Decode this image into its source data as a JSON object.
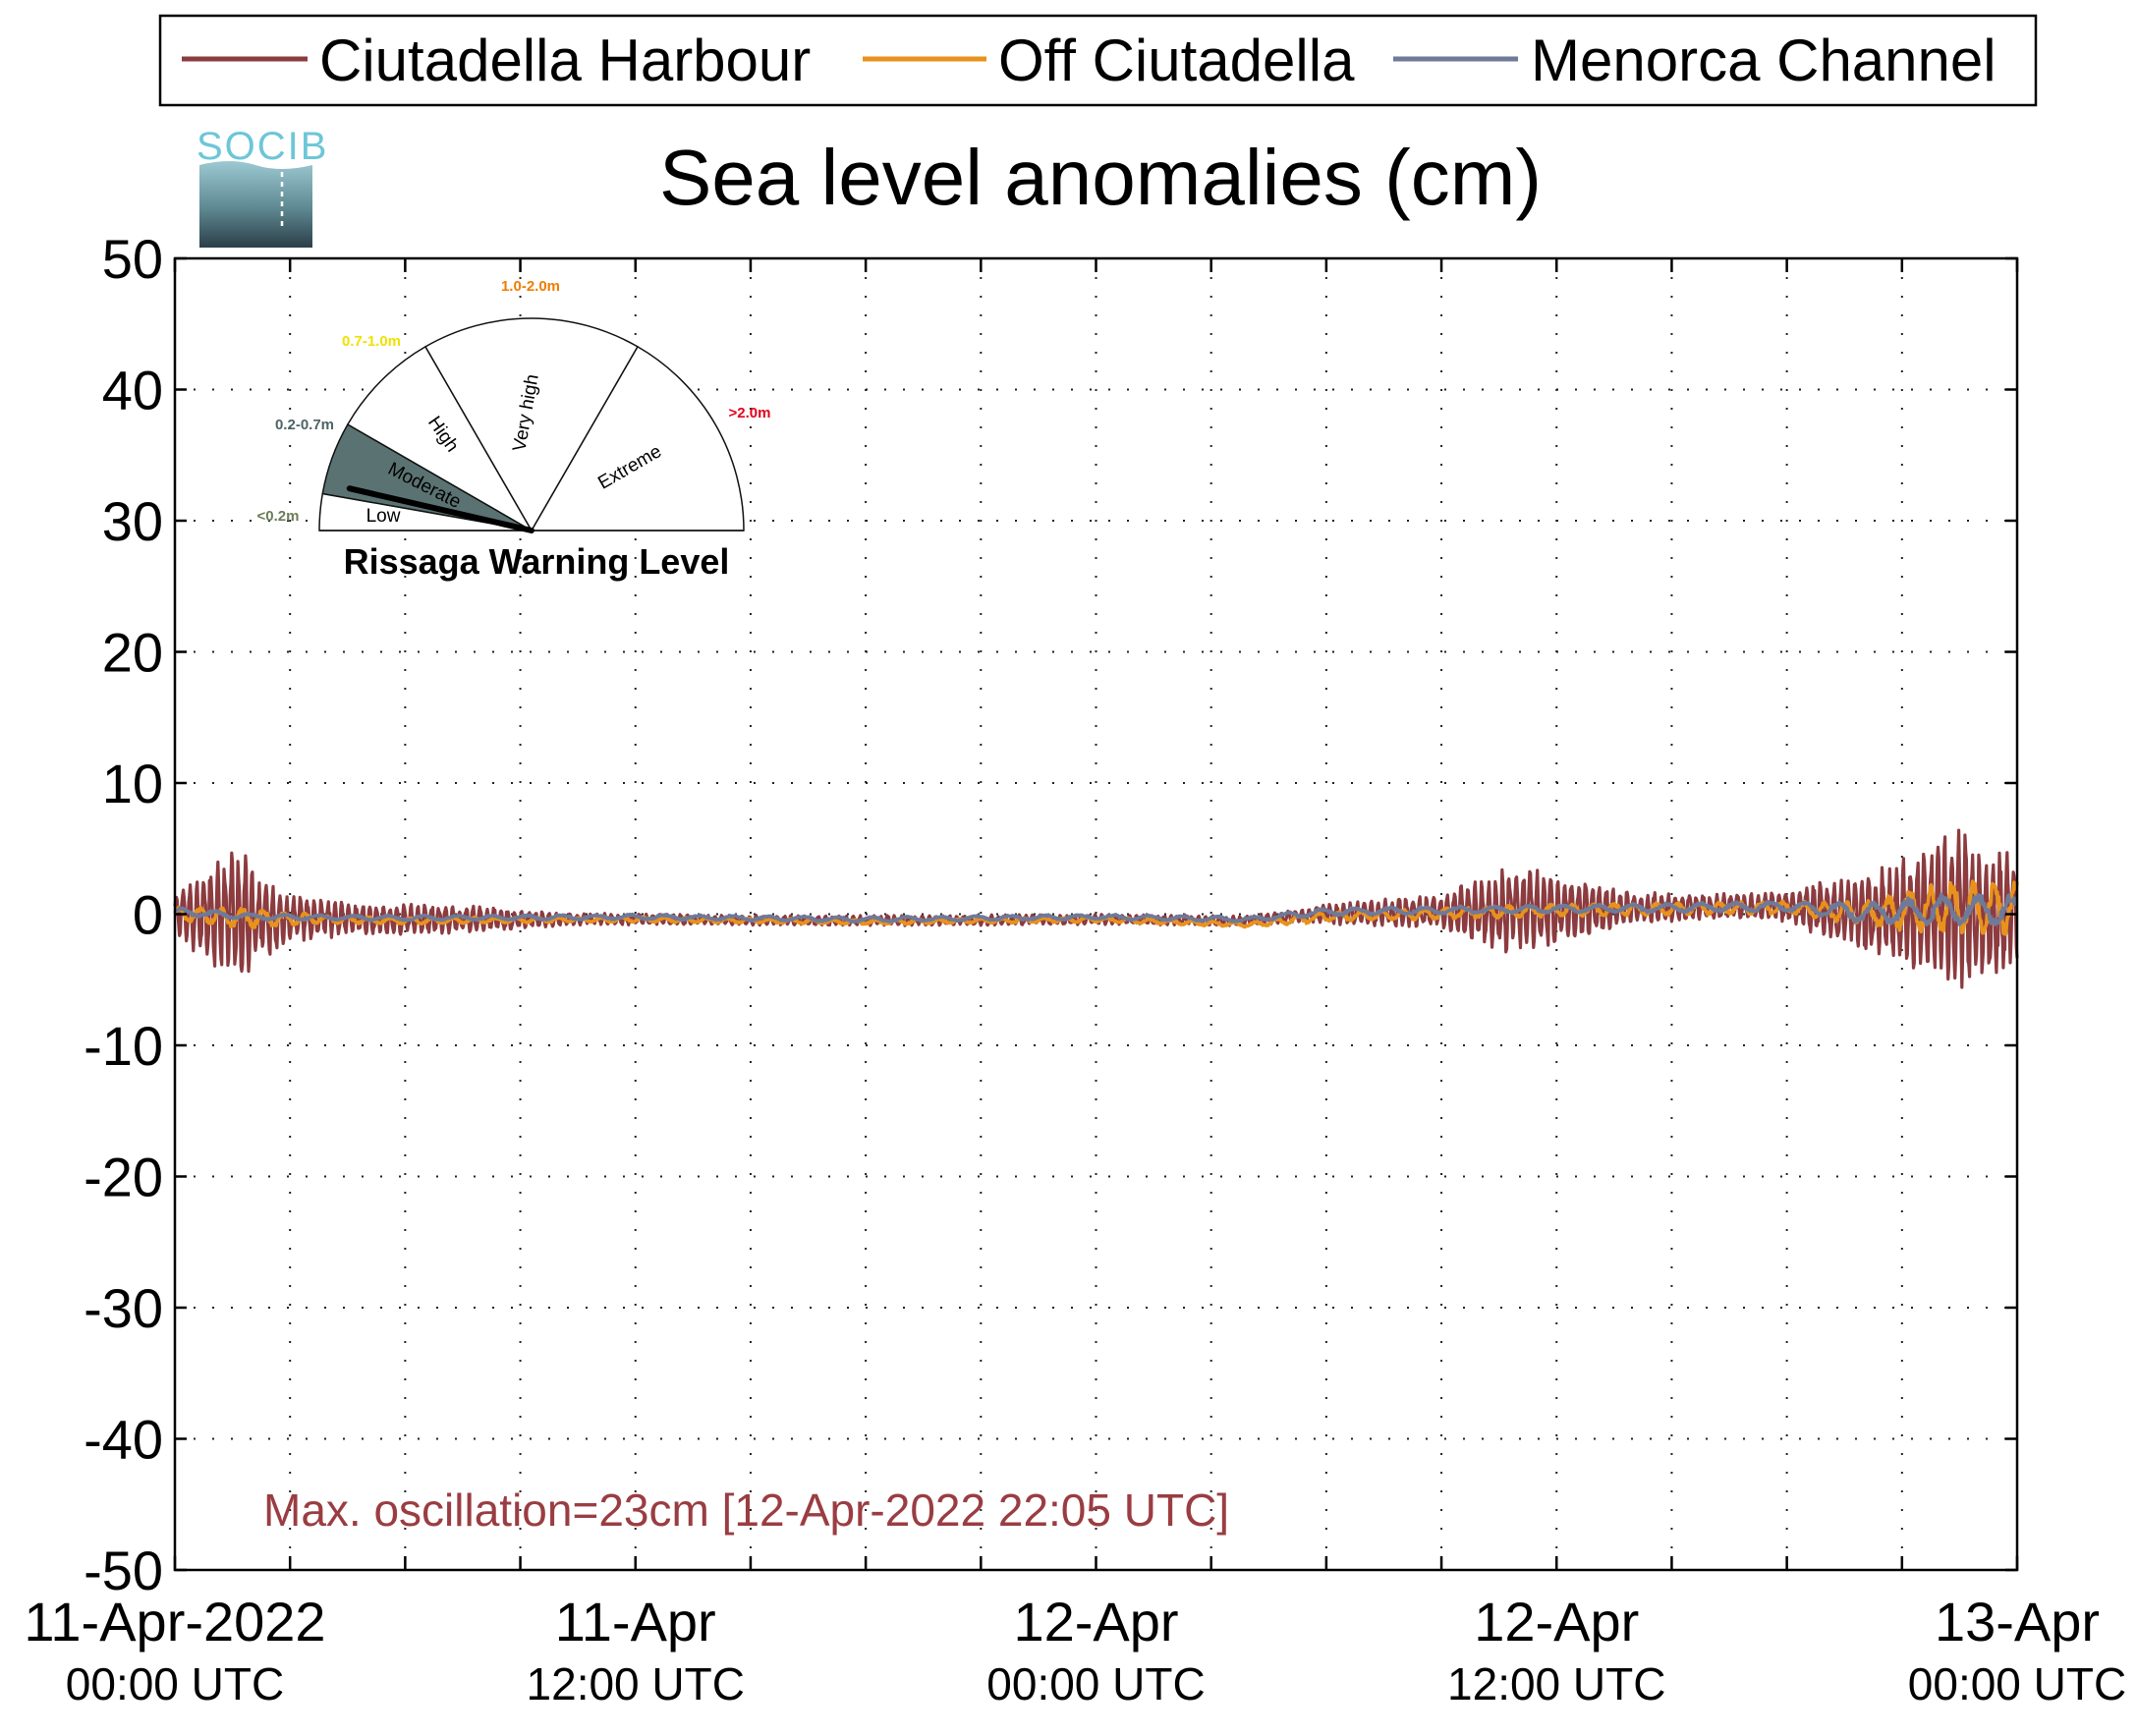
{
  "chart_data": {
    "type": "line",
    "title": "Sea level anomalies (cm)",
    "ylabel": "",
    "xlabel": "",
    "ylim": [
      -50,
      50
    ],
    "yticks": [
      50,
      40,
      30,
      20,
      10,
      0,
      -10,
      -20,
      -30,
      -40,
      -50
    ],
    "ytick_labels": [
      "50",
      "40",
      "30",
      "20",
      "10",
      "0",
      "-10",
      "-20",
      "-30",
      "-40",
      "-50"
    ],
    "xlim": [
      "2022-04-11 00:00",
      "2022-04-13 00:00"
    ],
    "x_minor_tick_hours": 3,
    "xtick_labels": [
      {
        "date": "11-Apr-2022",
        "time": "00:00 UTC",
        "hour": 0
      },
      {
        "date": "11-Apr",
        "time": "12:00 UTC",
        "hour": 12
      },
      {
        "date": "12-Apr",
        "time": "00:00 UTC",
        "hour": 24
      },
      {
        "date": "12-Apr",
        "time": "12:00 UTC",
        "hour": 36
      },
      {
        "date": "13-Apr",
        "time": "00:00 UTC",
        "hour": 48
      }
    ],
    "grid": true,
    "legend_position": "top",
    "annotation": "Max. oscillation=23cm [12-Apr-2022 22:05 UTC]",
    "series": [
      {
        "name": "Ciutadella Harbour",
        "color": "#8c3b3f",
        "amplitude_envelope": [
          [
            0,
            1.5
          ],
          [
            1,
            4.5
          ],
          [
            1.7,
            5.2
          ],
          [
            3,
            1.8
          ],
          [
            5,
            1.2
          ],
          [
            6,
            1.2
          ],
          [
            8,
            1.0
          ],
          [
            10,
            0.5
          ],
          [
            14,
            0.4
          ],
          [
            20,
            0.4
          ],
          [
            26,
            0.4
          ],
          [
            28,
            0.4
          ],
          [
            29.5,
            0.6
          ],
          [
            31,
            1.0
          ],
          [
            33,
            1.3
          ],
          [
            34.5,
            3.2
          ],
          [
            35.3,
            3.5
          ],
          [
            36.5,
            2.2
          ],
          [
            38,
            1.2
          ],
          [
            41,
            1.0
          ],
          [
            42,
            1.2
          ],
          [
            43,
            2.5
          ],
          [
            45,
            4.0
          ],
          [
            46.4,
            6.5
          ],
          [
            47.2,
            5.5
          ],
          [
            48,
            4.5
          ]
        ],
        "baseline": [
          [
            0,
            0.0
          ],
          [
            2,
            -0.3
          ],
          [
            6,
            -0.4
          ],
          [
            12,
            -0.4
          ],
          [
            18,
            -0.5
          ],
          [
            24,
            -0.4
          ],
          [
            28,
            -0.5
          ],
          [
            30,
            0.0
          ],
          [
            36,
            0.4
          ],
          [
            42,
            0.6
          ],
          [
            44,
            0.0
          ],
          [
            46,
            0.5
          ],
          [
            48,
            0.0
          ]
        ]
      },
      {
        "name": "Off Ciutadella",
        "color": "#e8921e",
        "amplitude_envelope": [
          [
            0,
            0.6
          ],
          [
            2,
            0.8
          ],
          [
            4,
            0.3
          ],
          [
            10,
            0.2
          ],
          [
            28,
            0.2
          ],
          [
            30,
            0.4
          ],
          [
            36,
            0.5
          ],
          [
            42,
            0.5
          ],
          [
            44,
            1.0
          ],
          [
            46,
            2.0
          ],
          [
            48,
            2.2
          ]
        ],
        "baseline": [
          [
            0,
            0.0
          ],
          [
            2,
            -0.3
          ],
          [
            6,
            -0.5
          ],
          [
            12,
            -0.4
          ],
          [
            18,
            -0.6
          ],
          [
            24,
            -0.4
          ],
          [
            28,
            -0.8
          ],
          [
            30,
            -0.2
          ],
          [
            36,
            0.3
          ],
          [
            42,
            0.5
          ],
          [
            44,
            0.0
          ],
          [
            46,
            0.5
          ],
          [
            48,
            0.5
          ]
        ]
      },
      {
        "name": "Menorca Channel",
        "color": "#6f7a99",
        "amplitude_envelope": [
          [
            0,
            0.3
          ],
          [
            4,
            0.2
          ],
          [
            28,
            0.2
          ],
          [
            30,
            0.3
          ],
          [
            36,
            0.3
          ],
          [
            42,
            0.4
          ],
          [
            44,
            0.8
          ],
          [
            46,
            1.2
          ],
          [
            48,
            1.2
          ]
        ],
        "baseline": [
          [
            0,
            0.2
          ],
          [
            2,
            -0.2
          ],
          [
            6,
            -0.3
          ],
          [
            12,
            -0.2
          ],
          [
            18,
            -0.4
          ],
          [
            24,
            -0.2
          ],
          [
            28,
            -0.4
          ],
          [
            30,
            0.2
          ],
          [
            36,
            0.4
          ],
          [
            42,
            0.6
          ],
          [
            44,
            0.1
          ],
          [
            46,
            0.3
          ],
          [
            48,
            0.3
          ]
        ]
      }
    ]
  },
  "logo": {
    "text": "SOCIB"
  },
  "gauge": {
    "title": "Rissaga Warning Level",
    "current_level": "Low",
    "sectors": [
      {
        "name": "Low",
        "range_label": "<0.2m",
        "range_color": "#6b7d56"
      },
      {
        "name": "Moderate",
        "range_label": "0.2-0.7m",
        "range_color": "#4f6466"
      },
      {
        "name": "High",
        "range_label": "0.7-1.0m",
        "range_color": "#f2e000"
      },
      {
        "name": "Very high",
        "range_label": "1.0-2.0m",
        "range_color": "#ef7d00"
      },
      {
        "name": "Extreme",
        "range_label": ">2.0m",
        "range_color": "#e3001b"
      }
    ],
    "highlight_color": "#5b7272"
  }
}
